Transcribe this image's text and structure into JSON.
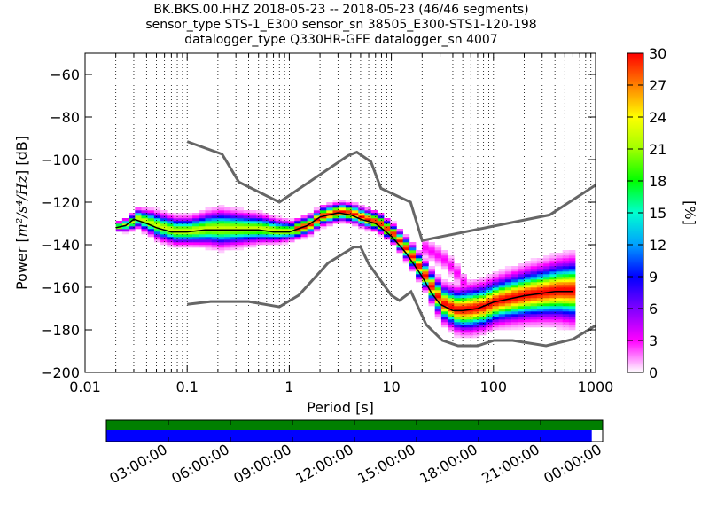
{
  "title_lines": [
    "BK.BKS.00.HHZ   2018-05-23 -- 2018-05-23  (46/46 segments)",
    "sensor_type STS-1_E300 sensor_sn 38505_E300-STS1-120-198",
    "datalogger_type Q330HR-GFE datalogger_sn 4007"
  ],
  "chart_data": {
    "type": "heatmap",
    "subtype": "probabilistic power spectral density",
    "xlabel": "Period [s]",
    "ylabel_prefix": "Power [",
    "ylabel_units": "m²/s⁴/Hz",
    "ylabel_suffix": "] [dB]",
    "xscale": "log",
    "xlim": [
      0.01,
      1000
    ],
    "ylim": [
      -200,
      -50
    ],
    "xticks": [
      0.01,
      0.1,
      1,
      10,
      100,
      1000
    ],
    "xtick_labels": [
      "0.01",
      "0.1",
      "1",
      "10",
      "100",
      "1000"
    ],
    "yticks": [
      -200,
      -180,
      -160,
      -140,
      -120,
      -100,
      -80,
      -60
    ],
    "ytick_labels": [
      "−200",
      "−180",
      "−160",
      "−140",
      "−120",
      "−100",
      "−80",
      "−60"
    ],
    "grid": "dotted vertical",
    "colorbar": {
      "label": "[%]",
      "range": [
        0,
        30
      ],
      "ticks": [
        0,
        3,
        6,
        9,
        12,
        15,
        18,
        21,
        24,
        27,
        30
      ],
      "tick_labels": [
        "0",
        "3",
        "6",
        "9",
        "12",
        "15",
        "18",
        "21",
        "24",
        "27",
        "30"
      ],
      "colormap": [
        "#ffffff",
        "#ff00ff",
        "#7f00ff",
        "#0000ff",
        "#00a0ff",
        "#00ffd0",
        "#00ff00",
        "#a0ff00",
        "#ffff00",
        "#ff8000",
        "#ff0000"
      ]
    },
    "nhnm": [
      [
        0.1,
        -91.5
      ],
      [
        0.22,
        -97.4
      ],
      [
        0.32,
        -110.5
      ],
      [
        0.8,
        -120
      ],
      [
        3.8,
        -98
      ],
      [
        4.6,
        -96.5
      ],
      [
        6.3,
        -101
      ],
      [
        7.9,
        -113.5
      ],
      [
        15.4,
        -120
      ],
      [
        20,
        -138
      ],
      [
        354.8,
        -126
      ],
      [
        1000,
        -112
      ]
    ],
    "nlnm": [
      [
        0.1,
        -168
      ],
      [
        0.17,
        -166.7
      ],
      [
        0.4,
        -166.7
      ],
      [
        0.8,
        -169.2
      ],
      [
        1.24,
        -163.7
      ],
      [
        2.4,
        -148.6
      ],
      [
        4.3,
        -141.1
      ],
      [
        5,
        -141.1
      ],
      [
        6,
        -149
      ],
      [
        10,
        -163.8
      ],
      [
        12,
        -166.2
      ],
      [
        15.6,
        -162.1
      ],
      [
        21.9,
        -177.5
      ],
      [
        31.6,
        -185
      ],
      [
        45,
        -187.5
      ],
      [
        70,
        -187.5
      ],
      [
        101,
        -185
      ],
      [
        154,
        -185
      ],
      [
        328,
        -187.5
      ],
      [
        600,
        -184.4
      ],
      [
        1000,
        -178
      ]
    ],
    "mode": [
      [
        0.02,
        -132
      ],
      [
        0.025,
        -131
      ],
      [
        0.03,
        -128
      ],
      [
        0.04,
        -130
      ],
      [
        0.05,
        -132
      ],
      [
        0.07,
        -134
      ],
      [
        0.1,
        -134
      ],
      [
        0.15,
        -133
      ],
      [
        0.3,
        -133
      ],
      [
        0.5,
        -133
      ],
      [
        0.7,
        -134
      ],
      [
        1,
        -134
      ],
      [
        1.5,
        -131
      ],
      [
        2,
        -127
      ],
      [
        3,
        -125
      ],
      [
        4,
        -126
      ],
      [
        5,
        -128
      ],
      [
        7,
        -130
      ],
      [
        10,
        -136
      ],
      [
        14,
        -144
      ],
      [
        20,
        -155
      ],
      [
        25,
        -163
      ],
      [
        30,
        -168
      ],
      [
        40,
        -171
      ],
      [
        50,
        -171
      ],
      [
        70,
        -170
      ],
      [
        100,
        -167
      ],
      [
        200,
        -164
      ],
      [
        400,
        -162
      ],
      [
        600,
        -162
      ]
    ],
    "spread": [
      [
        0.02,
        1
      ],
      [
        0.03,
        2
      ],
      [
        0.05,
        3
      ],
      [
        0.1,
        3
      ],
      [
        0.2,
        4
      ],
      [
        0.5,
        3
      ],
      [
        1,
        2
      ],
      [
        2,
        2
      ],
      [
        3,
        2
      ],
      [
        5,
        2
      ],
      [
        10,
        2
      ],
      [
        20,
        3
      ],
      [
        30,
        4
      ],
      [
        50,
        5
      ],
      [
        100,
        5
      ],
      [
        300,
        6
      ],
      [
        600,
        7
      ]
    ],
    "secondary": [
      [
        20,
        -142
      ],
      [
        30,
        -147
      ],
      [
        40,
        -153
      ],
      [
        50,
        -160
      ],
      [
        60,
        -163
      ],
      [
        70,
        -164
      ],
      [
        100,
        -164
      ],
      [
        200,
        -162
      ],
      [
        400,
        -158
      ],
      [
        600,
        -155
      ]
    ],
    "timeline": {
      "tick_labels": [
        "03:00:00",
        "06:00:00",
        "09:00:00",
        "12:00:00",
        "15:00:00",
        "18:00:00",
        "21:00:00",
        "00:00:00"
      ],
      "coverage_fraction": 0.978,
      "colors": {
        "data": "#0000ff",
        "gaps": "#007f00"
      }
    }
  }
}
